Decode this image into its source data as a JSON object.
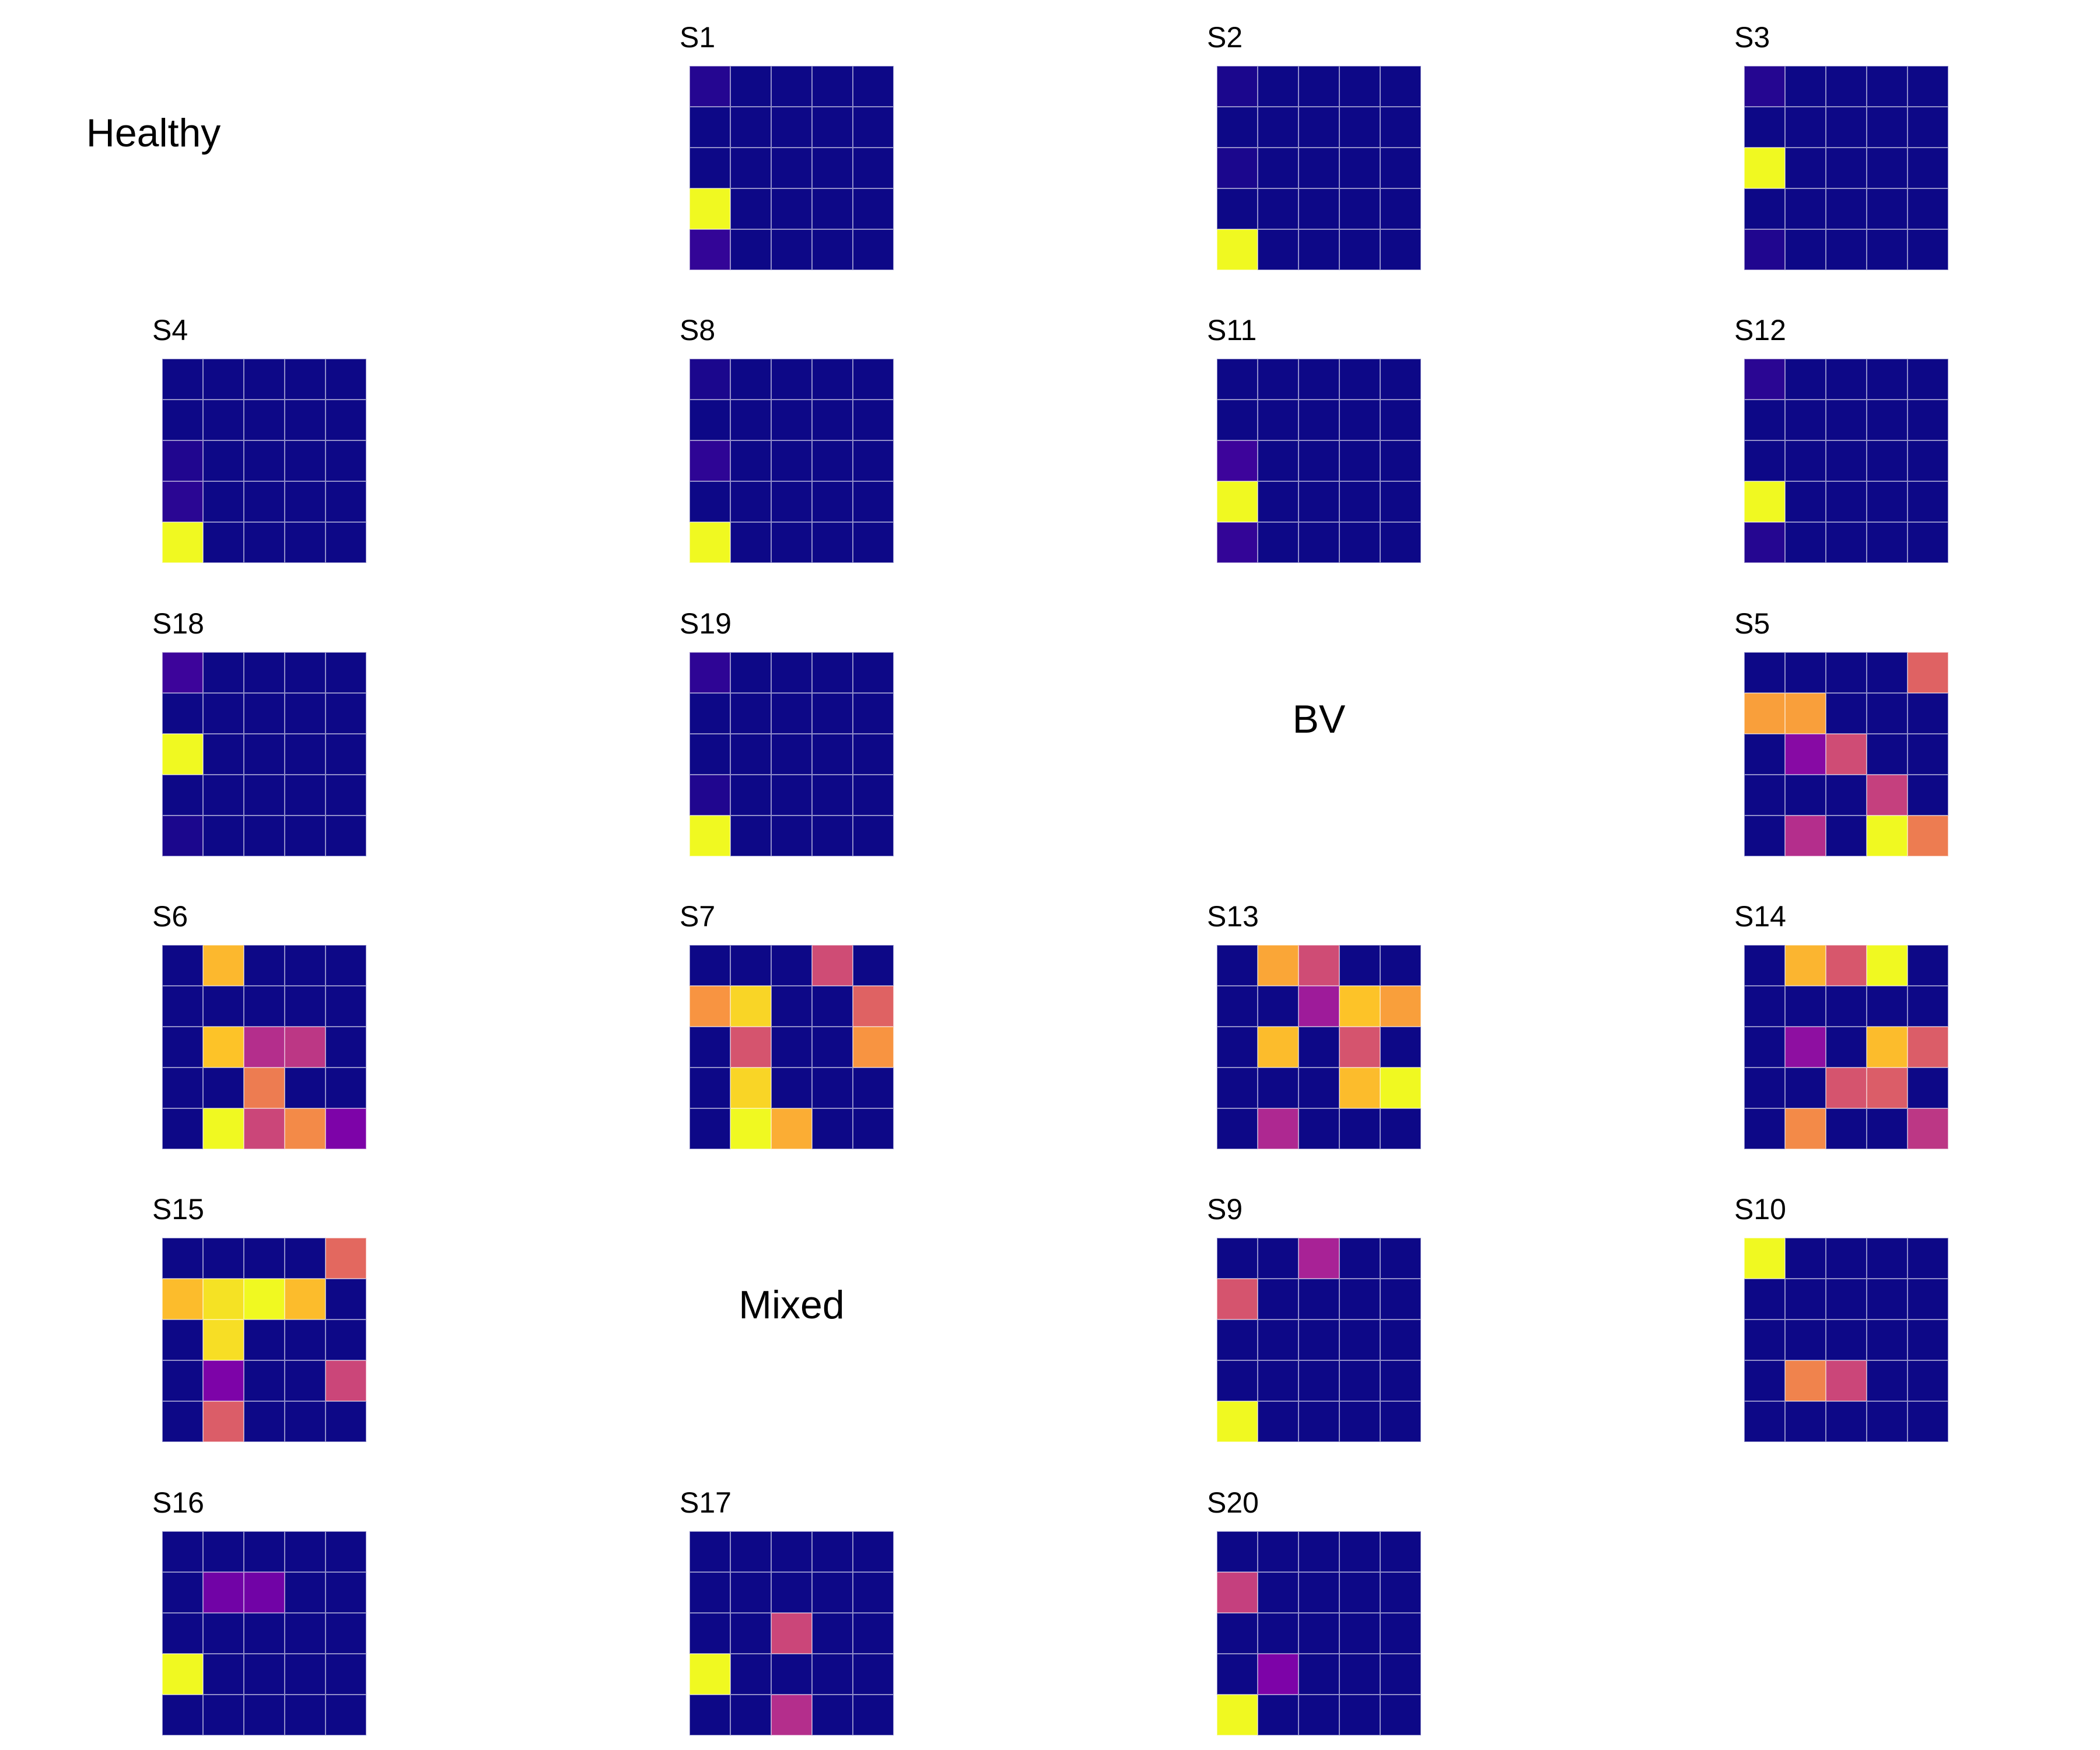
{
  "chart_data": {
    "type": "heatmap",
    "colormap": "plasma",
    "value_range": [
      0,
      1
    ],
    "groups": [
      {
        "label": "Healthy",
        "panels": [
          {
            "title": "S1",
            "matrix": [
              [
                0.05,
                0,
                0,
                0,
                0
              ],
              [
                0,
                0,
                0,
                0,
                0
              ],
              [
                0,
                0,
                0,
                0,
                0
              ],
              [
                1,
                0,
                0,
                0,
                0
              ],
              [
                0.08,
                0,
                0,
                0,
                0
              ]
            ]
          },
          {
            "title": "S2",
            "matrix": [
              [
                0.03,
                0,
                0,
                0,
                0
              ],
              [
                0,
                0,
                0,
                0,
                0
              ],
              [
                0.03,
                0,
                0,
                0,
                0
              ],
              [
                0,
                0,
                0,
                0,
                0
              ],
              [
                1,
                0,
                0,
                0,
                0
              ]
            ]
          },
          {
            "title": "S3",
            "matrix": [
              [
                0.05,
                0,
                0,
                0,
                0
              ],
              [
                0,
                0,
                0,
                0,
                0
              ],
              [
                1,
                0,
                0,
                0,
                0
              ],
              [
                0,
                0,
                0,
                0,
                0
              ],
              [
                0.04,
                0,
                0,
                0,
                0
              ]
            ]
          },
          {
            "title": "S4",
            "matrix": [
              [
                0,
                0,
                0,
                0,
                0
              ],
              [
                0,
                0,
                0,
                0,
                0
              ],
              [
                0.04,
                0,
                0,
                0,
                0
              ],
              [
                0.06,
                0,
                0,
                0,
                0
              ],
              [
                1,
                0,
                0,
                0,
                0
              ]
            ]
          },
          {
            "title": "S8",
            "matrix": [
              [
                0.03,
                0,
                0,
                0,
                0
              ],
              [
                0,
                0,
                0,
                0,
                0
              ],
              [
                0.07,
                0,
                0,
                0,
                0
              ],
              [
                0,
                0,
                0,
                0,
                0
              ],
              [
                1,
                0,
                0,
                0,
                0
              ]
            ]
          },
          {
            "title": "S11",
            "matrix": [
              [
                0,
                0,
                0,
                0,
                0
              ],
              [
                0,
                0,
                0,
                0,
                0
              ],
              [
                0.1,
                0,
                0,
                0,
                0
              ],
              [
                1,
                0,
                0,
                0,
                0
              ],
              [
                0.08,
                0,
                0,
                0,
                0
              ]
            ]
          },
          {
            "title": "S12",
            "matrix": [
              [
                0.06,
                0,
                0,
                0,
                0
              ],
              [
                0,
                0,
                0,
                0,
                0
              ],
              [
                0,
                0,
                0,
                0,
                0
              ],
              [
                1,
                0,
                0,
                0,
                0
              ],
              [
                0.05,
                0,
                0,
                0,
                0
              ]
            ]
          },
          {
            "title": "S18",
            "matrix": [
              [
                0.1,
                0,
                0,
                0,
                0
              ],
              [
                0,
                0,
                0,
                0,
                0
              ],
              [
                1,
                0,
                0,
                0,
                0
              ],
              [
                0,
                0,
                0,
                0,
                0
              ],
              [
                0.03,
                0,
                0,
                0,
                0
              ]
            ]
          },
          {
            "title": "S19",
            "matrix": [
              [
                0.07,
                0,
                0,
                0,
                0
              ],
              [
                0,
                0,
                0,
                0,
                0
              ],
              [
                0,
                0,
                0,
                0,
                0
              ],
              [
                0.04,
                0,
                0,
                0,
                0
              ],
              [
                1,
                0,
                0,
                0,
                0
              ]
            ]
          }
        ]
      },
      {
        "label": "BV",
        "panels": [
          {
            "title": "S5",
            "matrix": [
              [
                0,
                0,
                0,
                0,
                0.6
              ],
              [
                0.78,
                0.78,
                0,
                0,
                0
              ],
              [
                0,
                0.28,
                0.52,
                0,
                0
              ],
              [
                0,
                0,
                0,
                0.48,
                0
              ],
              [
                0,
                0.42,
                0,
                1,
                0.68
              ]
            ]
          },
          {
            "title": "S6",
            "matrix": [
              [
                0,
                0.85,
                0,
                0,
                0
              ],
              [
                0,
                0,
                0,
                0,
                0
              ],
              [
                0,
                0.88,
                0.42,
                0.45,
                0
              ],
              [
                0,
                0,
                0.68,
                0,
                0
              ],
              [
                0,
                1,
                0.5,
                0.72,
                0.25
              ]
            ]
          },
          {
            "title": "S7",
            "matrix": [
              [
                0,
                0,
                0,
                0.52,
                0
              ],
              [
                0.75,
                0.92,
                0,
                0,
                0.6
              ],
              [
                0,
                0.55,
                0,
                0,
                0.75
              ],
              [
                0,
                0.92,
                0,
                0,
                0
              ],
              [
                0,
                1,
                0.82,
                0,
                0
              ]
            ]
          },
          {
            "title": "S13",
            "matrix": [
              [
                0,
                0.8,
                0.52,
                0,
                0
              ],
              [
                0,
                0,
                0.35,
                0.88,
                0.78
              ],
              [
                0,
                0.86,
                0,
                0.55,
                0
              ],
              [
                0,
                0,
                0,
                0.86,
                1
              ],
              [
                0,
                0.4,
                0,
                0,
                0
              ]
            ]
          },
          {
            "title": "S14",
            "matrix": [
              [
                0,
                0.84,
                0.56,
                1,
                0
              ],
              [
                0,
                0,
                0,
                0,
                0
              ],
              [
                0,
                0.3,
                0,
                0.86,
                0.58
              ],
              [
                0,
                0,
                0.55,
                0.58,
                0
              ],
              [
                0,
                0.72,
                0,
                0,
                0.45
              ]
            ]
          },
          {
            "title": "S15",
            "matrix": [
              [
                0,
                0,
                0,
                0,
                0.62
              ],
              [
                0.86,
                0.95,
                1,
                0.86,
                0
              ],
              [
                0,
                0.94,
                0,
                0,
                0
              ],
              [
                0,
                0.25,
                0,
                0,
                0.5
              ],
              [
                0,
                0.58,
                0,
                0,
                0
              ]
            ]
          }
        ]
      },
      {
        "label": "Mixed",
        "panels": [
          {
            "title": "S9",
            "matrix": [
              [
                0,
                0,
                0.38,
                0,
                0
              ],
              [
                0.55,
                0,
                0,
                0,
                0
              ],
              [
                0,
                0,
                0,
                0,
                0
              ],
              [
                0,
                0,
                0,
                0,
                0
              ],
              [
                1,
                0,
                0,
                0,
                0
              ]
            ]
          },
          {
            "title": "S10",
            "matrix": [
              [
                1,
                0,
                0,
                0,
                0
              ],
              [
                0,
                0,
                0,
                0,
                0
              ],
              [
                0,
                0,
                0,
                0,
                0
              ],
              [
                0,
                0.7,
                0.5,
                0,
                0
              ],
              [
                0,
                0,
                0,
                0,
                0
              ]
            ]
          },
          {
            "title": "S16",
            "matrix": [
              [
                0,
                0,
                0,
                0,
                0
              ],
              [
                0,
                0.22,
                0.22,
                0,
                0
              ],
              [
                0,
                0,
                0,
                0,
                0
              ],
              [
                1,
                0,
                0,
                0,
                0
              ],
              [
                0,
                0,
                0,
                0,
                0
              ]
            ]
          },
          {
            "title": "S17",
            "matrix": [
              [
                0,
                0,
                0,
                0,
                0
              ],
              [
                0,
                0,
                0,
                0,
                0
              ],
              [
                0,
                0,
                0.5,
                0,
                0
              ],
              [
                1,
                0,
                0,
                0,
                0
              ],
              [
                0,
                0,
                0.42,
                0,
                0
              ]
            ]
          },
          {
            "title": "S20",
            "matrix": [
              [
                0,
                0,
                0,
                0,
                0
              ],
              [
                0.48,
                0,
                0,
                0,
                0
              ],
              [
                0,
                0,
                0,
                0,
                0
              ],
              [
                0,
                0.25,
                0,
                0,
                0
              ],
              [
                1,
                0,
                0,
                0,
                0
              ]
            ]
          }
        ]
      }
    ]
  }
}
